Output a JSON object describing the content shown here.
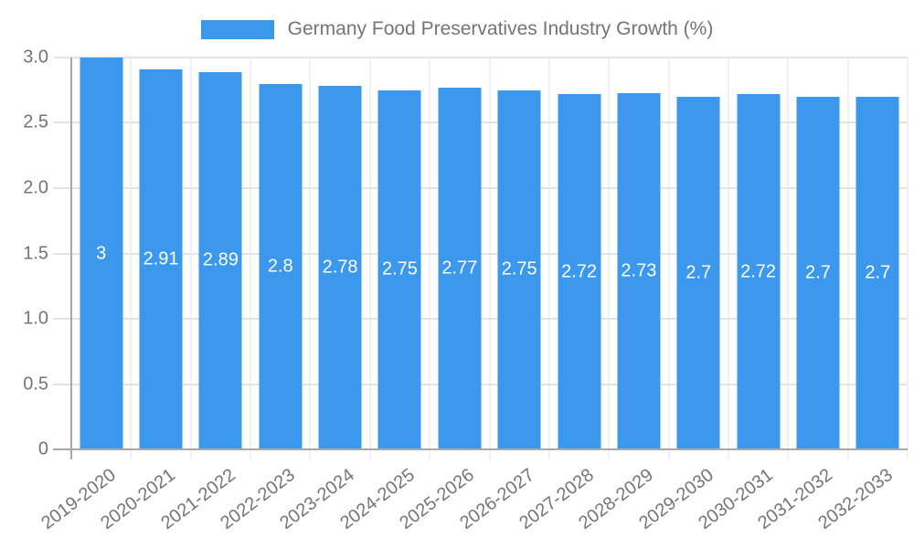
{
  "chart_data": {
    "type": "bar",
    "legend": {
      "label": "Germany Food Preservatives Industry Growth (%)",
      "position": "top"
    },
    "categories": [
      "2019-2020",
      "2020-2021",
      "2021-2022",
      "2022-2023",
      "2023-2024",
      "2024-2025",
      "2025-2026",
      "2026-2027",
      "2027-2028",
      "2028-2029",
      "2029-2030",
      "2030-2031",
      "2031-2032",
      "2032-2033"
    ],
    "values": [
      3,
      2.91,
      2.89,
      2.8,
      2.78,
      2.75,
      2.77,
      2.75,
      2.72,
      2.73,
      2.7,
      2.72,
      2.7,
      2.7
    ],
    "bar_labels": [
      "3",
      "2.91",
      "2.89",
      "2.8",
      "2.78",
      "2.75",
      "2.77",
      "2.75",
      "2.72",
      "2.73",
      "2.7",
      "2.72",
      "2.7",
      "2.7"
    ],
    "xlabel": "",
    "ylabel": "",
    "ylim": [
      0,
      3
    ],
    "y_ticks": [
      {
        "value": 3,
        "label": "3.0"
      },
      {
        "value": 2.5,
        "label": "2.5"
      },
      {
        "value": 2,
        "label": "2.0"
      },
      {
        "value": 1.5,
        "label": "1.5"
      },
      {
        "value": 1,
        "label": "1.0"
      },
      {
        "value": 0.5,
        "label": "0.5"
      },
      {
        "value": 0,
        "label": "0"
      }
    ],
    "grid": true,
    "colors": {
      "bar": "#3b98ec",
      "grid": "#e3e3e3",
      "axis": "#a8a8a8",
      "text": "#757575",
      "bar_label": "#ffffff",
      "background": "#ffffff"
    }
  }
}
